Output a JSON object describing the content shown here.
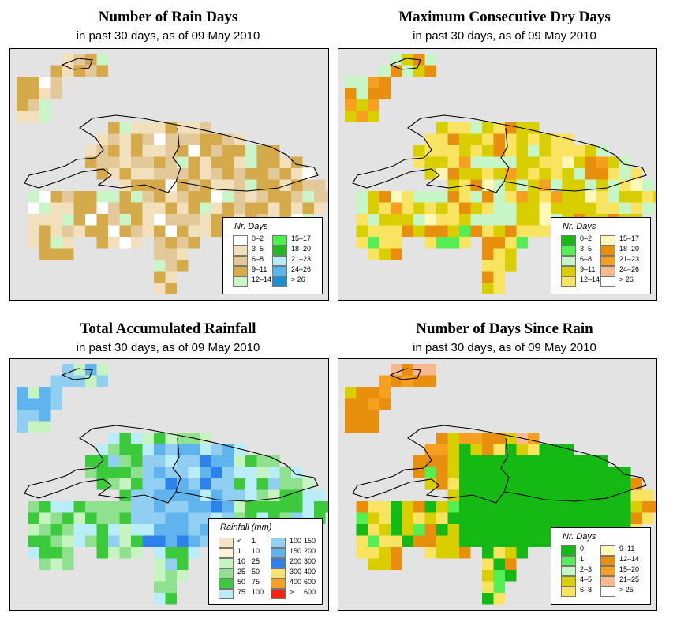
{
  "panels": [
    {
      "key": "raindays",
      "title": "Number of Rain Days",
      "subtitle": "in past 30 days, as of  09 May 2010",
      "legend_title": "Nr. Days",
      "legend_type": "twoCol",
      "legend_items": [
        {
          "label": "0–2",
          "color": "#ffffff"
        },
        {
          "label": "3–5",
          "color": "#f2dfbc"
        },
        {
          "label": "6–8",
          "color": "#e3c89a"
        },
        {
          "label": "9–11",
          "color": "#d4aa4a"
        },
        {
          "label": "12–14",
          "color": "#c9f5c9"
        },
        {
          "label": "15–17",
          "color": "#4cef4c"
        },
        {
          "label": "18–20",
          "color": "#22b822"
        },
        {
          "label": "21–23",
          "color": "#b5ecf8"
        },
        {
          "label": "24–26",
          "color": "#5ab6ea"
        },
        {
          "label": "> 26",
          "color": "#1f8fd0"
        }
      ]
    },
    {
      "key": "drydays",
      "title": "Maximum Consecutive Dry Days",
      "subtitle": "in past 30 days, as of  09 May 2010",
      "legend_title": "Nr. Days",
      "legend_type": "twoCol",
      "legend_items": [
        {
          "label": "0–2",
          "color": "#14b914"
        },
        {
          "label": "3–5",
          "color": "#55ee55"
        },
        {
          "label": "6–8",
          "color": "#c6f6c6"
        },
        {
          "label": "9–11",
          "color": "#d8ce00"
        },
        {
          "label": "12–14",
          "color": "#f8e460"
        },
        {
          "label": "15–17",
          "color": "#fff8b8"
        },
        {
          "label": "18–20",
          "color": "#e8900e"
        },
        {
          "label": "21–23",
          "color": "#f6a020"
        },
        {
          "label": "24–26",
          "color": "#f8b890"
        },
        {
          "label": "> 26",
          "color": "#ffffff"
        }
      ]
    },
    {
      "key": "rainfall",
      "title": "Total Accumulated Rainfall",
      "subtitle": "in past 30 days, as of  09 May 2010",
      "legend_title": "Rainfall (mm)",
      "legend_type": "range",
      "legend_items": [
        {
          "a": "<",
          "b": "1",
          "color": "#f4e4c4"
        },
        {
          "a": "1",
          "b": "10",
          "color": "#fcf4d8"
        },
        {
          "a": "10",
          "b": "25",
          "color": "#c6f4c0"
        },
        {
          "a": "25",
          "b": "50",
          "color": "#8fe08f"
        },
        {
          "a": "50",
          "b": "75",
          "color": "#3cc93c"
        },
        {
          "a": "75",
          "b": "100",
          "color": "#b9eef8"
        },
        {
          "a": "100",
          "b": "150",
          "color": "#90cff2"
        },
        {
          "a": "150",
          "b": "200",
          "color": "#60b4ee"
        },
        {
          "a": "200",
          "b": "300",
          "color": "#2c82e8"
        },
        {
          "a": "300",
          "b": "400",
          "color": "#f8e078"
        },
        {
          "a": "400",
          "b": "600",
          "color": "#f8a022"
        },
        {
          "a": ">",
          "b": "600",
          "color": "#f52414"
        }
      ]
    },
    {
      "key": "sincerain",
      "title": "Number of Days Since Rain",
      "subtitle": "in past 30 days, as of  09 May 2010",
      "legend_title": "Nr. Days",
      "legend_type": "twoCol",
      "legend_items": [
        {
          "label": "0",
          "color": "#14b914"
        },
        {
          "label": "1",
          "color": "#55ee55"
        },
        {
          "label": "2–3",
          "color": "#c6f6c6"
        },
        {
          "label": "4–5",
          "color": "#d8ce00"
        },
        {
          "label": "6–8",
          "color": "#f8e460"
        },
        {
          "label": "9–11",
          "color": "#fff8b8"
        },
        {
          "label": "12–14",
          "color": "#e8900e"
        },
        {
          "label": "15–20",
          "color": "#f6a020"
        },
        {
          "label": "21–25",
          "color": "#f8b890"
        },
        {
          "label": "> 25",
          "color": "#ffffff"
        }
      ]
    }
  ]
}
